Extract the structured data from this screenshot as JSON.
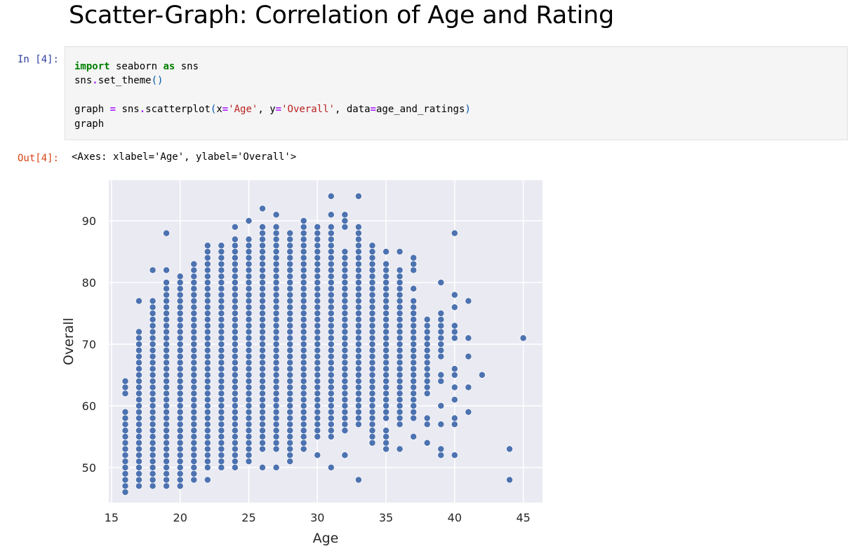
{
  "heading": "Scatter-Graph: Correlation of Age and Rating",
  "cell": {
    "in_prompt": "In [4]:",
    "out_prompt": "Out[4]:",
    "code": {
      "l1_kw1": "import",
      "l1_mod": " seaborn ",
      "l1_kw2": "as",
      "l1_alias": " sns",
      "l2_obj": "sns",
      "l2_dot": ".",
      "l2_fn": "set_theme",
      "l2_parens": "()",
      "l3_var": "graph ",
      "l3_eq": "=",
      "l3_obj": " sns",
      "l3_dot": ".",
      "l3_fn": "scatterplot",
      "l3_lp": "(",
      "l3_x": "x",
      "l3_eq2": "=",
      "l3_xval": "'Age'",
      "l3_c1": ", ",
      "l3_y": "y",
      "l3_eq3": "=",
      "l3_yval": "'Overall'",
      "l3_c2": ", ",
      "l3_data": "data",
      "l3_eq4": "=",
      "l3_dataval": "age_and_ratings",
      "l3_rp": ")",
      "l4": "graph"
    },
    "output_text": "<Axes: xlabel='Age', ylabel='Overall'>"
  },
  "chart_data": {
    "type": "scatter",
    "xlabel": "Age",
    "ylabel": "Overall",
    "xlim": [
      14.8,
      46.4
    ],
    "ylim": [
      44.3,
      96.6
    ],
    "xticks": [
      15,
      20,
      25,
      30,
      35,
      40,
      45
    ],
    "yticks": [
      50,
      60,
      70,
      80,
      90
    ],
    "grid": true,
    "legend": "none",
    "colors": {
      "background": "#eaeaf2",
      "grid": "#ffffff",
      "marker": "#4c72b0",
      "marker_edge": "#ffffff"
    },
    "ranges_by_age": [
      {
        "age": 16,
        "ranges": [
          [
            46,
            59
          ],
          [
            62,
            64
          ]
        ]
      },
      {
        "age": 17,
        "ranges": [
          [
            47,
            72
          ],
          [
            77,
            77
          ]
        ]
      },
      {
        "age": 18,
        "ranges": [
          [
            47,
            77
          ],
          [
            82,
            82
          ]
        ]
      },
      {
        "age": 19,
        "ranges": [
          [
            47,
            80
          ],
          [
            82,
            82
          ],
          [
            88,
            88
          ]
        ]
      },
      {
        "age": 20,
        "ranges": [
          [
            47,
            81
          ]
        ]
      },
      {
        "age": 21,
        "ranges": [
          [
            48,
            83
          ]
        ]
      },
      {
        "age": 22,
        "ranges": [
          [
            48,
            48
          ],
          [
            50,
            86
          ]
        ]
      },
      {
        "age": 23,
        "ranges": [
          [
            50,
            86
          ]
        ]
      },
      {
        "age": 24,
        "ranges": [
          [
            50,
            87
          ],
          [
            89,
            89
          ]
        ]
      },
      {
        "age": 25,
        "ranges": [
          [
            51,
            87
          ],
          [
            90,
            90
          ]
        ]
      },
      {
        "age": 26,
        "ranges": [
          [
            50,
            50
          ],
          [
            53,
            89
          ],
          [
            92,
            92
          ]
        ]
      },
      {
        "age": 27,
        "ranges": [
          [
            50,
            50
          ],
          [
            53,
            89
          ],
          [
            91,
            91
          ]
        ]
      },
      {
        "age": 28,
        "ranges": [
          [
            51,
            88
          ]
        ]
      },
      {
        "age": 29,
        "ranges": [
          [
            53,
            90
          ]
        ]
      },
      {
        "age": 30,
        "ranges": [
          [
            52,
            52
          ],
          [
            55,
            89
          ]
        ]
      },
      {
        "age": 31,
        "ranges": [
          [
            50,
            50
          ],
          [
            55,
            89
          ],
          [
            91,
            91
          ],
          [
            94,
            94
          ]
        ]
      },
      {
        "age": 32,
        "ranges": [
          [
            52,
            52
          ],
          [
            56,
            85
          ],
          [
            89,
            91
          ]
        ]
      },
      {
        "age": 33,
        "ranges": [
          [
            48,
            48
          ],
          [
            57,
            89
          ],
          [
            94,
            94
          ]
        ]
      },
      {
        "age": 34,
        "ranges": [
          [
            54,
            86
          ]
        ]
      },
      {
        "age": 35,
        "ranges": [
          [
            53,
            56
          ],
          [
            58,
            83
          ],
          [
            85,
            85
          ]
        ]
      },
      {
        "age": 36,
        "ranges": [
          [
            53,
            53
          ],
          [
            57,
            82
          ],
          [
            85,
            85
          ]
        ]
      },
      {
        "age": 37,
        "ranges": [
          [
            55,
            55
          ],
          [
            58,
            77
          ],
          [
            79,
            79
          ],
          [
            82,
            84
          ]
        ]
      },
      {
        "age": 38,
        "ranges": [
          [
            54,
            54
          ],
          [
            57,
            58
          ],
          [
            62,
            74
          ]
        ]
      },
      {
        "age": 39,
        "ranges": [
          [
            52,
            53
          ],
          [
            57,
            57
          ],
          [
            60,
            60
          ],
          [
            64,
            65
          ],
          [
            68,
            75
          ],
          [
            80,
            80
          ]
        ]
      },
      {
        "age": 40,
        "ranges": [
          [
            52,
            52
          ],
          [
            57,
            58
          ],
          [
            61,
            61
          ],
          [
            63,
            63
          ],
          [
            65,
            66
          ],
          [
            71,
            73
          ],
          [
            76,
            76
          ],
          [
            78,
            78
          ],
          [
            88,
            88
          ]
        ]
      },
      {
        "age": 41,
        "ranges": [
          [
            59,
            59
          ],
          [
            63,
            63
          ],
          [
            68,
            68
          ],
          [
            71,
            71
          ],
          [
            77,
            77
          ]
        ]
      },
      {
        "age": 42,
        "ranges": [
          [
            65,
            65
          ]
        ]
      },
      {
        "age": 44,
        "ranges": [
          [
            48,
            48
          ],
          [
            53,
            53
          ]
        ]
      },
      {
        "age": 45,
        "ranges": [
          [
            71,
            71
          ]
        ]
      }
    ]
  }
}
